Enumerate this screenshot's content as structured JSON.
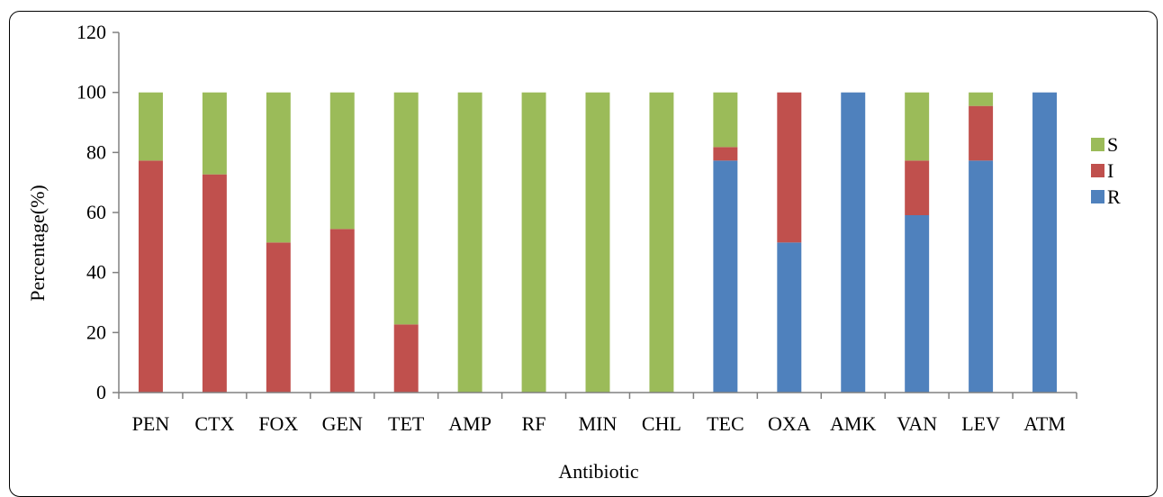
{
  "chart_data": {
    "type": "bar",
    "stacked": true,
    "categories": [
      "PEN",
      "CTX",
      "FOX",
      "GEN",
      "TET",
      "AMP",
      "RF",
      "MIN",
      "CHL",
      "TEC",
      "OXA",
      "AMK",
      "VAN",
      "LEV",
      "ATM"
    ],
    "series": [
      {
        "name": "R",
        "color": "#4f81bd",
        "values": [
          0,
          0,
          0,
          0,
          0,
          0,
          0,
          0,
          0,
          77.3,
          50,
          100,
          59.1,
          77.3,
          100
        ]
      },
      {
        "name": "I",
        "color": "#c0504d",
        "values": [
          77.3,
          72.7,
          50,
          54.5,
          22.7,
          0,
          0,
          0,
          0,
          4.5,
          50,
          0,
          18.2,
          18.2,
          0
        ]
      },
      {
        "name": "S",
        "color": "#9bbb59",
        "values": [
          22.7,
          27.3,
          50,
          45.5,
          77.3,
          100,
          100,
          100,
          100,
          18.2,
          0,
          0,
          22.7,
          4.5,
          0
        ]
      }
    ],
    "legend_order": [
      "S",
      "I",
      "R"
    ],
    "xlabel": "Antibiotic",
    "ylabel": "Percentage(%)",
    "ylim": [
      0,
      120
    ],
    "yticks": [
      0,
      20,
      40,
      60,
      80,
      100,
      120
    ],
    "grid": false,
    "legend_position": "right"
  }
}
